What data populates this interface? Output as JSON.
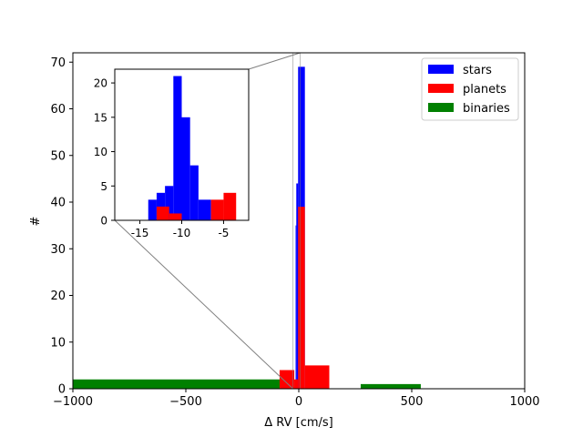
{
  "chart_data": [
    {
      "type": "bar",
      "xlabel": "Δ RV [cm/s]",
      "ylabel": "#",
      "xlim": [
        -1000,
        1000
      ],
      "ylim": [
        0,
        72
      ],
      "xticks": [
        -1000,
        -500,
        0,
        500,
        1000
      ],
      "xtick_labels": [
        "−1000",
        "−500",
        "0",
        "500",
        "1000"
      ],
      "yticks": [
        0,
        10,
        20,
        30,
        40,
        50,
        60,
        70
      ],
      "yticks_labels": [
        "0",
        "10",
        "20",
        "30",
        "40",
        "50",
        "60",
        "70"
      ],
      "legend": {
        "position": "upper right",
        "entries": [
          {
            "name": "stars",
            "color": "#0000ff"
          },
          {
            "name": "planets",
            "color": "#ff0000"
          },
          {
            "name": "binaries",
            "color": "#008000"
          }
        ]
      },
      "series": [
        {
          "name": "binaries",
          "color": "#008000",
          "bins": [
            {
              "x0": -1000,
              "x1": -82,
              "count": 2
            },
            {
              "x0": 274,
              "x1": 540,
              "count": 1
            }
          ]
        },
        {
          "name": "stars",
          "color": "#0000ff",
          "bins": [
            {
              "x0": -14,
              "x1": -11,
              "count": 35
            },
            {
              "x0": -11,
              "x1": -3,
              "count": 44
            },
            {
              "x0": -3,
              "x1": 0,
              "count": 69
            },
            {
              "x0": 0,
              "x1": 27,
              "count": 69
            }
          ]
        },
        {
          "name": "planets",
          "color": "#ff0000",
          "bins": [
            {
              "x0": -85,
              "x1": -20,
              "count": 4
            },
            {
              "x0": -20,
              "x1": -3,
              "count": 2
            },
            {
              "x0": -3,
              "x1": 27,
              "count": 39
            },
            {
              "x0": 27,
              "x1": 135,
              "count": 5
            }
          ]
        }
      ]
    },
    {
      "type": "bar",
      "role": "inset",
      "xlim": [
        -18,
        -2
      ],
      "ylim": [
        0,
        22
      ],
      "xticks": [
        -15,
        -10,
        -5
      ],
      "xtick_labels": [
        "-15",
        "-10",
        "-5"
      ],
      "yticks": [
        0,
        5,
        10,
        15,
        20
      ],
      "yticks_labels": [
        "0",
        "5",
        "10",
        "15",
        "20"
      ],
      "series": [
        {
          "name": "stars",
          "color": "#0000ff",
          "bins": [
            {
              "x0": -14,
              "x1": -13,
              "count": 3
            },
            {
              "x0": -13,
              "x1": -12,
              "count": 4
            },
            {
              "x0": -12,
              "x1": -11,
              "count": 5
            },
            {
              "x0": -11,
              "x1": -10,
              "count": 21
            },
            {
              "x0": -10,
              "x1": -9,
              "count": 15
            },
            {
              "x0": -9,
              "x1": -8,
              "count": 8
            },
            {
              "x0": -8,
              "x1": -6.5,
              "count": 3
            }
          ]
        },
        {
          "name": "planets",
          "color": "#ff0000",
          "bins": [
            {
              "x0": -13,
              "x1": -11.5,
              "count": 2
            },
            {
              "x0": -11.5,
              "x1": -10,
              "count": 1
            },
            {
              "x0": -6.5,
              "x1": -5,
              "count": 3
            },
            {
              "x0": -5,
              "x1": -3.5,
              "count": 4
            }
          ]
        }
      ]
    }
  ]
}
